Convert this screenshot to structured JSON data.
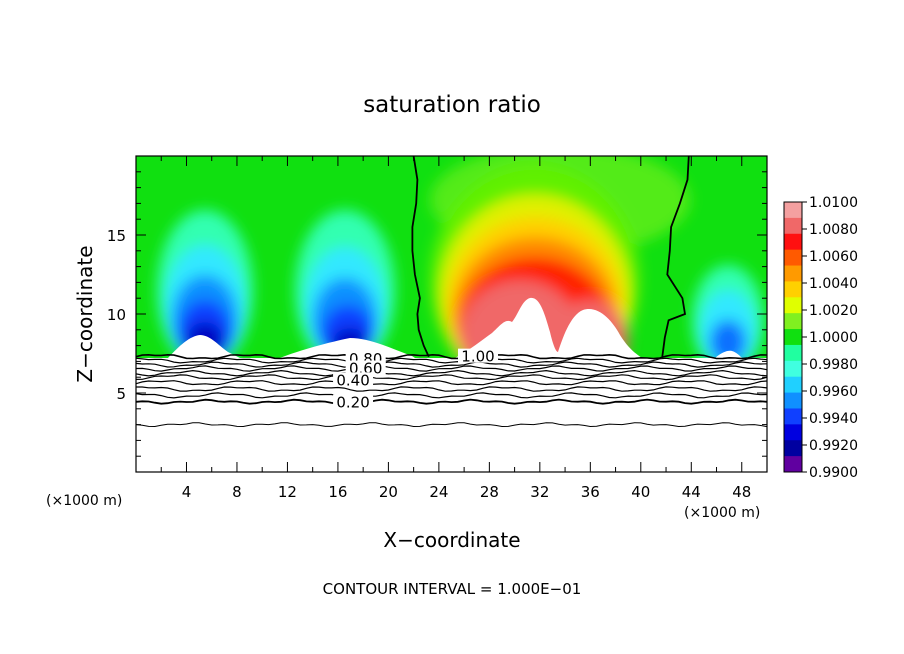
{
  "chart_data": {
    "type": "heatmap",
    "title": "saturation ratio",
    "xlabel": "X−coordinate",
    "ylabel": "Z−coordinate",
    "x_unit_left": "(×1000 m)",
    "x_unit_right": "(×1000 m)",
    "xlim": [
      0,
      50
    ],
    "ylim": [
      0,
      20
    ],
    "x_ticks": [
      4,
      8,
      12,
      16,
      20,
      24,
      28,
      32,
      36,
      40,
      44,
      48
    ],
    "y_ticks": [
      5,
      10,
      15
    ],
    "footer": "CONTOUR INTERVAL = 1.000E−01",
    "colorbar": {
      "min": 0.99,
      "max": 1.01,
      "labels": [
        "1.0100",
        "1.0080",
        "1.0060",
        "1.0040",
        "1.0020",
        "1.0000",
        "0.9980",
        "0.9960",
        "0.9940",
        "0.9920",
        "0.9900"
      ],
      "colors": [
        "#f4a0a0",
        "#f06868",
        "#ff1010",
        "#ff5a00",
        "#ff9a00",
        "#ffd000",
        "#e0ff00",
        "#80f020",
        "#10e010",
        "#20ffa0",
        "#40ffe0",
        "#20d0ff",
        "#1090ff",
        "#1040ff",
        "#0000e0",
        "#0000a0",
        "#6000a0"
      ]
    },
    "contour_labels": [
      {
        "text": "0.80",
        "x": 18.2,
        "z": 7.15
      },
      {
        "text": "0.60",
        "x": 18.2,
        "z": 6.55
      },
      {
        "text": "0.40",
        "x": 17.2,
        "z": 5.8
      },
      {
        "text": "0.20",
        "x": 17.2,
        "z": 4.4
      },
      {
        "text": "1.00",
        "x": 27.1,
        "z": 7.3
      }
    ],
    "saturation_boundary_left": [
      [
        22.0,
        20
      ],
      [
        22.3,
        18.5
      ],
      [
        22.2,
        17
      ],
      [
        21.9,
        15.5
      ],
      [
        21.9,
        14
      ],
      [
        22.1,
        12.5
      ],
      [
        22.5,
        11
      ],
      [
        22.3,
        10
      ],
      [
        22.4,
        9
      ],
      [
        22.8,
        8
      ],
      [
        23.2,
        7.3
      ]
    ],
    "saturation_boundary_right": [
      [
        43.8,
        20
      ],
      [
        43.7,
        18.5
      ],
      [
        43.1,
        17
      ],
      [
        42.4,
        15.5
      ],
      [
        42.3,
        14
      ],
      [
        42.1,
        12.5
      ],
      [
        43.3,
        11
      ],
      [
        43.5,
        10
      ],
      [
        42.2,
        9.6
      ],
      [
        41.9,
        8.5
      ],
      [
        41.7,
        7.3
      ]
    ]
  }
}
